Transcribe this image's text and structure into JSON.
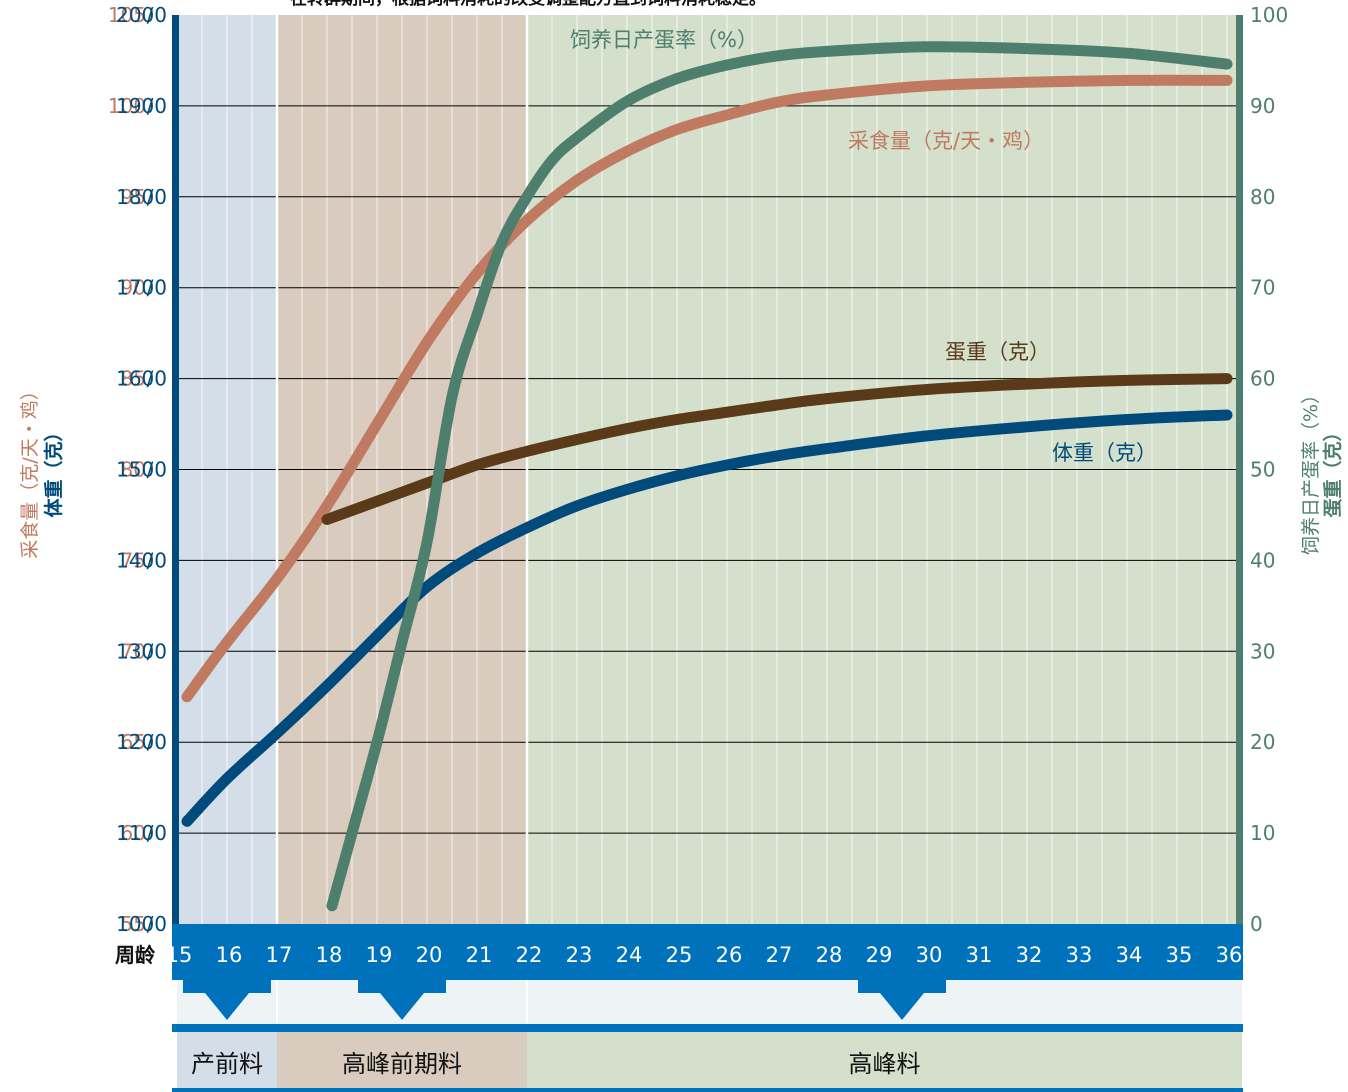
{
  "chart_data": {
    "type": "line",
    "title": "在转群期间，根据饲料消耗的改变调整配方直到饲料消耗稳定。",
    "x": [
      15,
      16,
      17,
      18,
      19,
      20,
      21,
      22,
      23,
      24,
      25,
      26,
      27,
      28,
      29,
      30,
      31,
      32,
      33,
      34,
      35,
      36
    ],
    "xlabel": "周龄",
    "left_axis": {
      "label_feed": "采食量（克/天・鸡）",
      "label_weight": "体重（克）",
      "feed_ticks": [
        "105",
        "100",
        "95",
        "90",
        "85",
        "80",
        "75",
        "70",
        "65",
        "60",
        "55"
      ],
      "weight_ticks": [
        "2000",
        "1900",
        "1800",
        "1700",
        "1600",
        "1500",
        "1400",
        "1300",
        "1200",
        "1100",
        "1000"
      ],
      "weight_range": [
        1000,
        2000
      ],
      "feed_range": [
        55,
        105
      ]
    },
    "right_axis": {
      "label_rate": "饲养日产蛋率（%）",
      "label_egg": "蛋重（克）",
      "ticks": [
        "100",
        "90",
        "80",
        "70",
        "60",
        "50",
        "40",
        "30",
        "20",
        "10",
        "0"
      ],
      "range": [
        0,
        100
      ]
    },
    "series": [
      {
        "name": "饲养日产蛋率（%）",
        "axis": "right",
        "color": "#4e7f6d",
        "points": [
          [
            18.1,
            2
          ],
          [
            18.5,
            10
          ],
          [
            19,
            20
          ],
          [
            19.5,
            31
          ],
          [
            20,
            42
          ],
          [
            20.5,
            58
          ],
          [
            21,
            67
          ],
          [
            21.5,
            75
          ],
          [
            22,
            80
          ],
          [
            22.5,
            84
          ],
          [
            23,
            86.5
          ],
          [
            24,
            90.5
          ],
          [
            25,
            93
          ],
          [
            26,
            94.5
          ],
          [
            27,
            95.5
          ],
          [
            28,
            96
          ],
          [
            30,
            96.5
          ],
          [
            32,
            96.3
          ],
          [
            34,
            95.8
          ],
          [
            36,
            94.6
          ]
        ]
      },
      {
        "name": "采食量（克/天・鸡）",
        "axis": "left_feed",
        "color": "#c07a61",
        "points": [
          [
            15.2,
            67.5
          ],
          [
            16,
            70.5
          ],
          [
            17,
            74
          ],
          [
            18,
            78
          ],
          [
            19,
            82.5
          ],
          [
            20,
            87
          ],
          [
            21,
            90.8
          ],
          [
            22,
            93.7
          ],
          [
            23,
            95.9
          ],
          [
            24,
            97.5
          ],
          [
            25,
            98.7
          ],
          [
            26,
            99.5
          ],
          [
            27,
            100.2
          ],
          [
            28,
            100.6
          ],
          [
            30,
            101.1
          ],
          [
            32,
            101.3
          ],
          [
            34,
            101.4
          ],
          [
            36,
            101.4
          ]
        ]
      },
      {
        "name": "蛋重（克）",
        "axis": "right",
        "color": "#5b3a1a",
        "points": [
          [
            18,
            44.5
          ],
          [
            19,
            46.5
          ],
          [
            20,
            48.5
          ],
          [
            21,
            50.5
          ],
          [
            22,
            52
          ],
          [
            23,
            53.3
          ],
          [
            24,
            54.5
          ],
          [
            25,
            55.5
          ],
          [
            26,
            56.3
          ],
          [
            27,
            57.1
          ],
          [
            28,
            57.8
          ],
          [
            30,
            58.8
          ],
          [
            32,
            59.4
          ],
          [
            34,
            59.8
          ],
          [
            36,
            60
          ]
        ]
      },
      {
        "name": "体重（克）",
        "axis": "left_weight",
        "color": "#004a7c",
        "points": [
          [
            15.2,
            1113
          ],
          [
            16,
            1160
          ],
          [
            17,
            1210
          ],
          [
            18,
            1262
          ],
          [
            19,
            1317
          ],
          [
            20,
            1371
          ],
          [
            21,
            1408
          ],
          [
            22,
            1436
          ],
          [
            23,
            1460
          ],
          [
            24,
            1478
          ],
          [
            25,
            1493
          ],
          [
            26,
            1505
          ],
          [
            27,
            1515
          ],
          [
            28,
            1523
          ],
          [
            30,
            1537
          ],
          [
            32,
            1547
          ],
          [
            34,
            1555
          ],
          [
            36,
            1560
          ]
        ]
      }
    ],
    "phases": [
      {
        "label": "产前料",
        "from": 15,
        "to": 17,
        "color": "#d4dee8",
        "arrow_at": 16
      },
      {
        "label": "高峰前期料",
        "from": 17,
        "to": 22,
        "color": "#d9ccbe",
        "arrow_at": 19.5
      },
      {
        "label": "高峰料",
        "from": 22,
        "to": 36.3,
        "color": "#d4e0cb",
        "arrow_at": 29.5
      }
    ],
    "grid": true,
    "colors": {
      "left_axis": "#004a7c",
      "right_axis": "#4e7f6d",
      "feed": "#c07a61",
      "band": "#0072bb"
    }
  }
}
